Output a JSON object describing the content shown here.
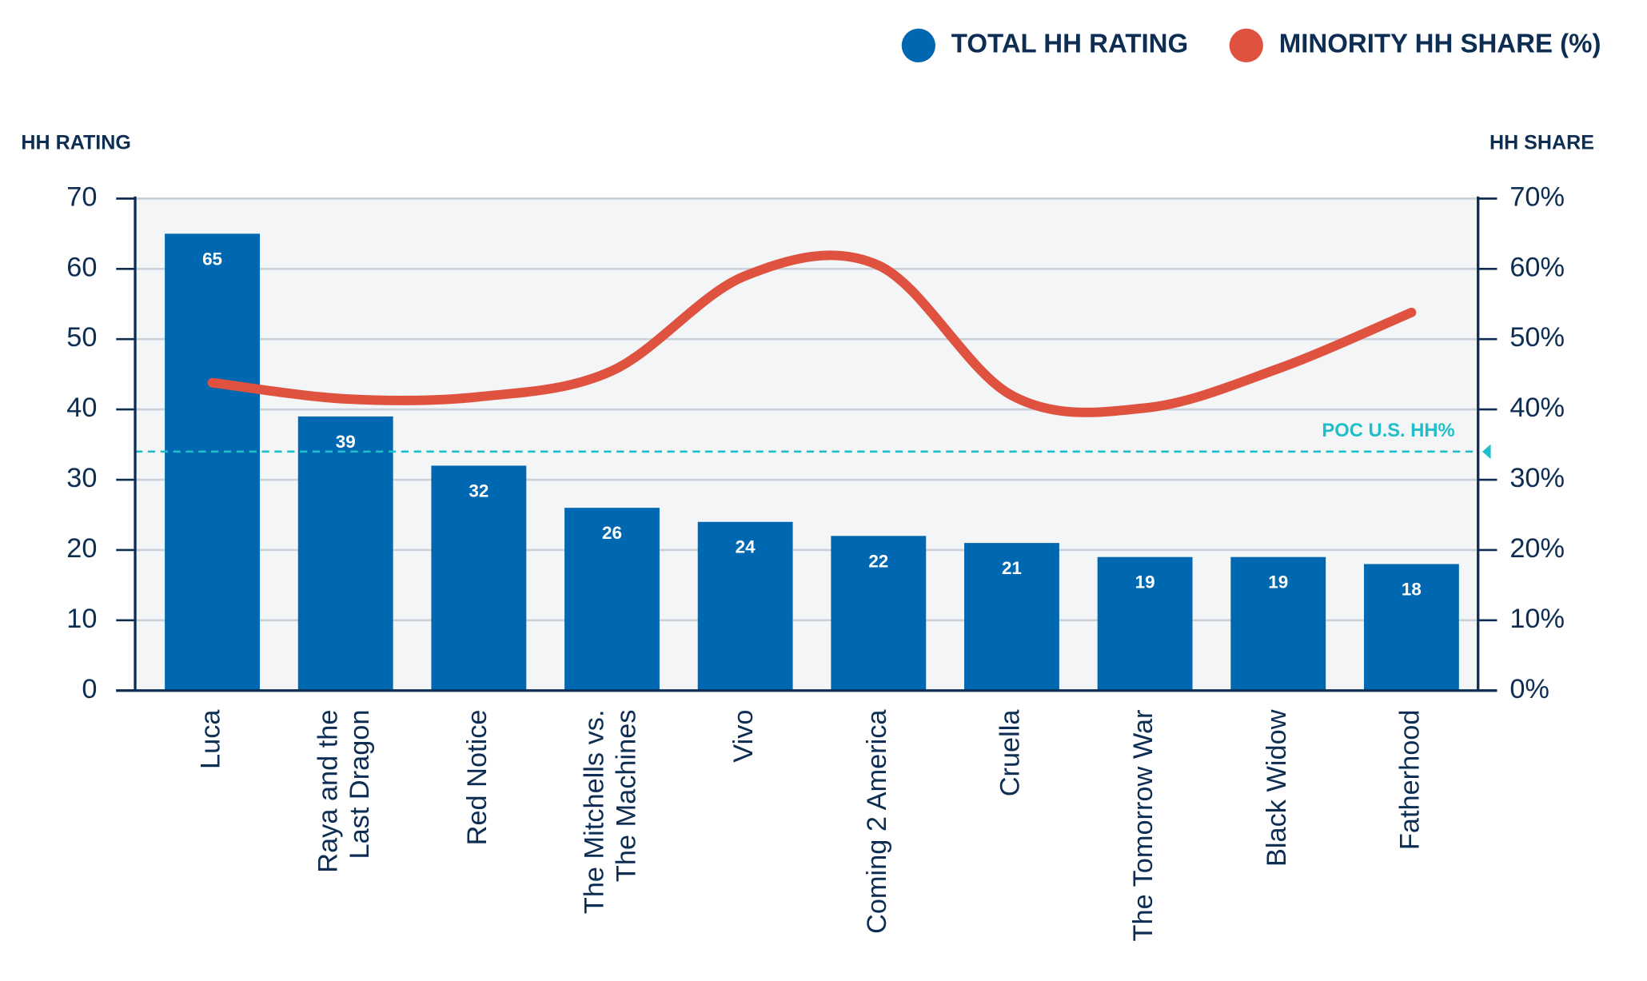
{
  "chart_data": {
    "type": "bar_line",
    "legend_position": "top-right",
    "grid": true,
    "y_axis_title": "HH RATING",
    "y2_axis_title": "HH SHARE",
    "categories": [
      "Luca",
      "Raya and the\nLast Dragon",
      "Red Notice",
      "The Mitchells vs.\nThe Machines",
      "Vivo",
      "Coming 2 America",
      "Cruella",
      "The Tomorrow War",
      "Black Widow",
      "Fatherhood"
    ],
    "series": [
      {
        "name": "TOTAL HH RATING",
        "color": "#0067b1",
        "type": "bar",
        "values": [
          65,
          39,
          32,
          26,
          24,
          22,
          21,
          19,
          19,
          18
        ]
      },
      {
        "name": "MINORITY HH SHARE (%)",
        "color": "#e05240",
        "type": "line",
        "axis": "y2",
        "values": [
          43.8,
          41.5,
          41.8,
          45.5,
          59,
          60.5,
          42,
          40.2,
          45.8,
          53.8
        ]
      }
    ],
    "reference_line": {
      "value": 34,
      "label": "POC U.S. HH%",
      "color": "#1fbfc9",
      "axis": "y2"
    },
    "ylim": [
      0,
      70
    ],
    "yticks": [
      0,
      10,
      20,
      30,
      40,
      50,
      60,
      70
    ],
    "y2lim": [
      0,
      70
    ],
    "y2ticks": [
      {
        "value": 0,
        "label": "0%"
      },
      {
        "value": 10,
        "label": "10%"
      },
      {
        "value": 20,
        "label": "20%"
      },
      {
        "value": 30,
        "label": "30%"
      },
      {
        "value": 40,
        "label": "40%"
      },
      {
        "value": 50,
        "label": "50%"
      },
      {
        "value": 60,
        "label": "60%"
      },
      {
        "value": 70,
        "label": "70%"
      }
    ]
  }
}
